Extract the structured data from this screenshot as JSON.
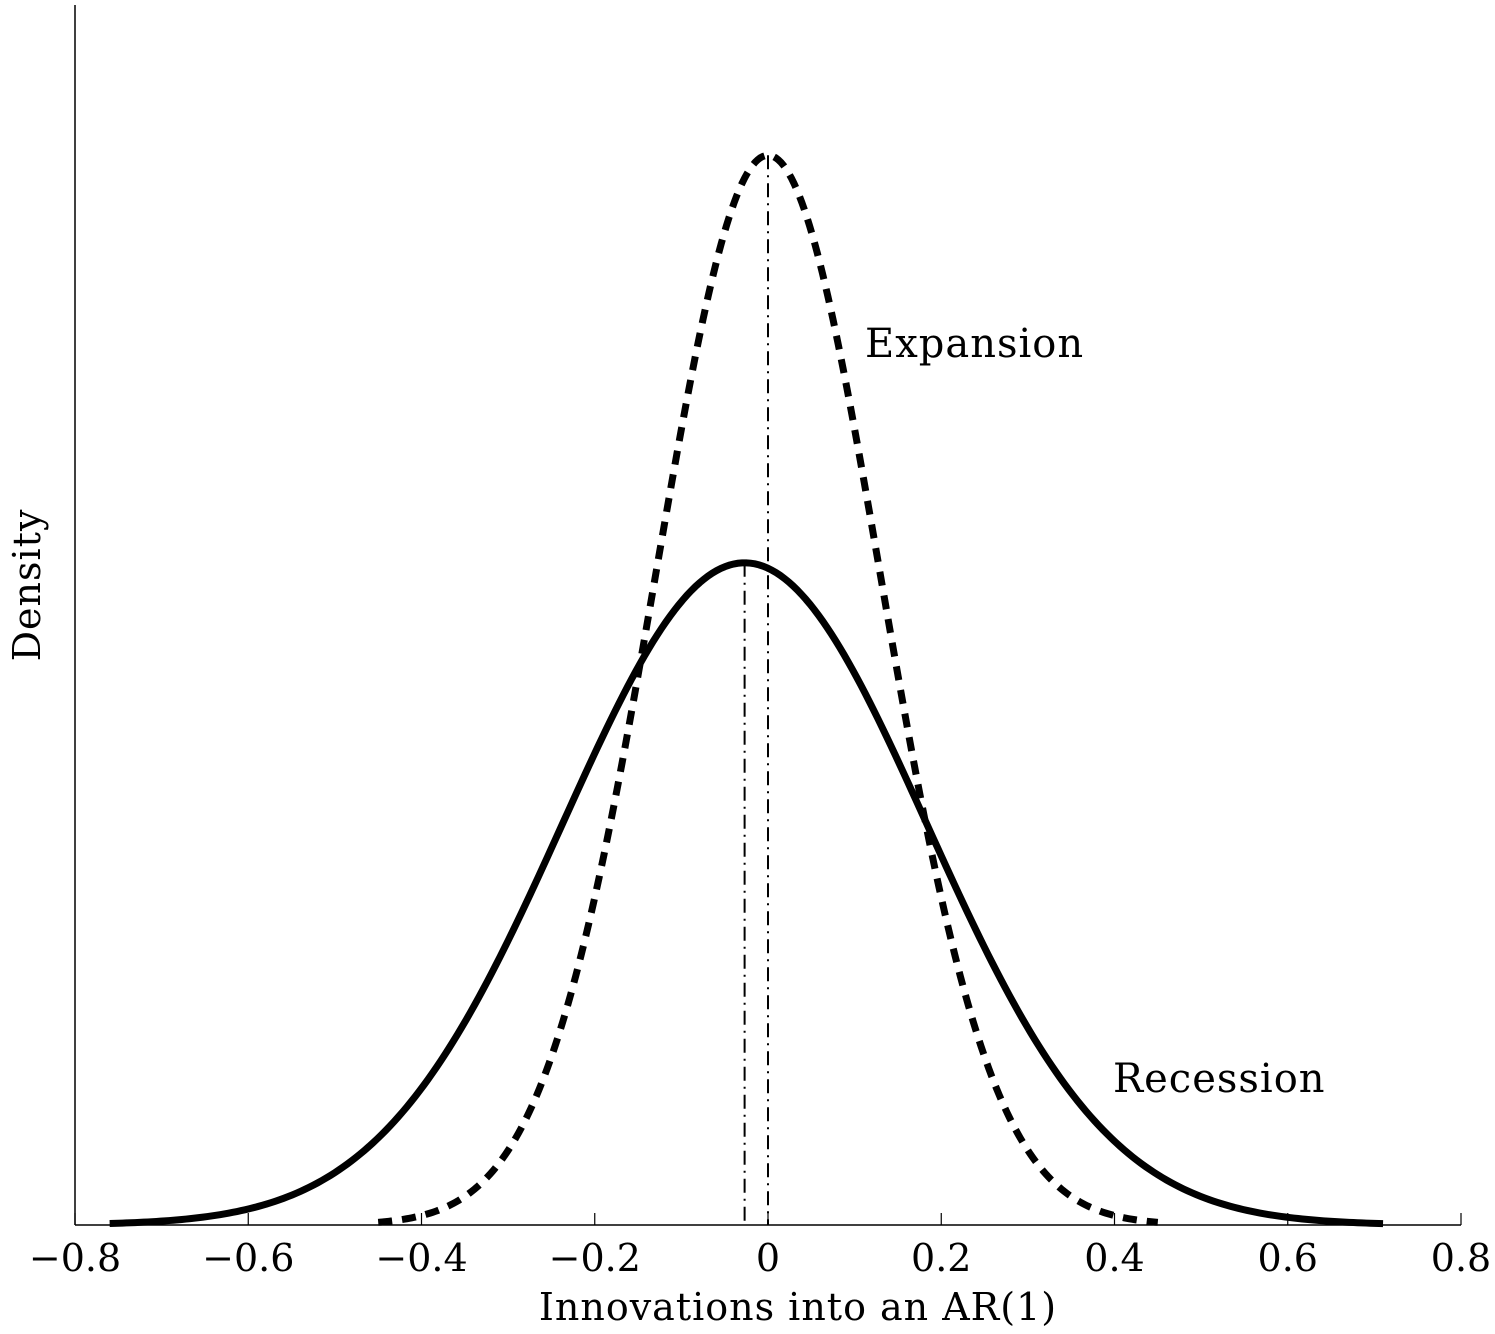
{
  "chart_data": {
    "type": "line",
    "title": "",
    "xlabel": "Innovations into an AR(1)",
    "ylabel": "Density",
    "xlim": [
      -0.8,
      0.8
    ],
    "ylim": [
      0,
      3.5
    ],
    "x_ticks": [
      -0.8,
      -0.6,
      -0.4,
      -0.2,
      0,
      0.2,
      0.4,
      0.6,
      0.8
    ],
    "x_tick_labels": [
      "−0.8",
      "−0.6",
      "−0.4",
      "−0.2",
      "0",
      "0.2",
      "0.4",
      "0.6",
      "0.8"
    ],
    "y_ticks": [],
    "grid": false,
    "legend": "none",
    "series": [
      {
        "name": "Expansion",
        "distribution": "normal",
        "mean": 0.0,
        "sd": 0.13,
        "x_range": [
          -0.45,
          0.45
        ],
        "line_style": "dashed",
        "color": "#000000"
      },
      {
        "name": "Recession",
        "distribution": "normal",
        "mean": -0.027,
        "sd": 0.21,
        "x_range": [
          -0.76,
          0.71
        ],
        "line_style": "solid",
        "color": "#000000"
      }
    ],
    "mean_lines": [
      {
        "series": "Expansion",
        "x": 0.0,
        "line_style": "dash-dot"
      },
      {
        "series": "Recession",
        "x": -0.027,
        "line_style": "dash-dot"
      }
    ],
    "annotations": [
      {
        "text": "Expansion",
        "series": "Expansion"
      },
      {
        "text": "Recession",
        "series": "Recession"
      }
    ]
  }
}
